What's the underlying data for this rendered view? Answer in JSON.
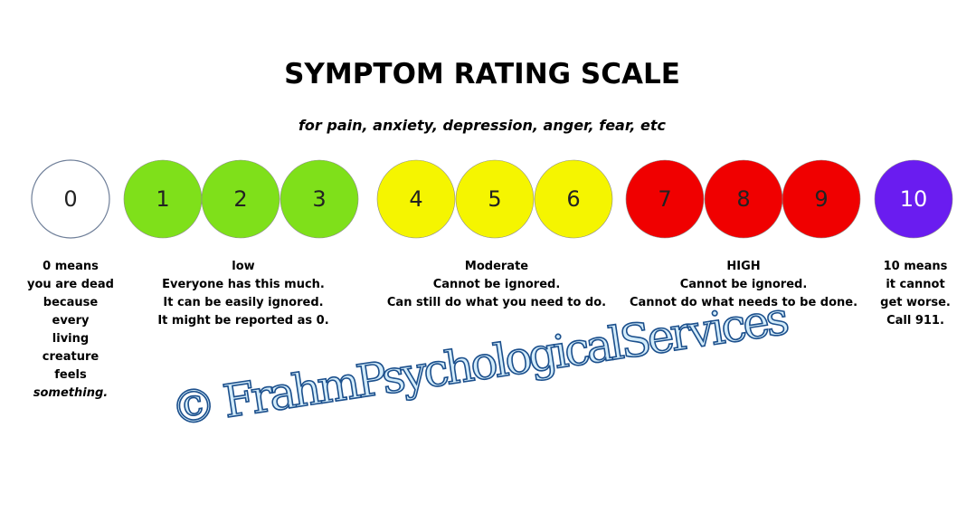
{
  "header": {
    "title": "SYMPTOM RATING SCALE",
    "subtitle": "for pain, anxiety, depression, anger, fear, etc"
  },
  "circles": [
    {
      "label": "0",
      "color": "#ffffff"
    },
    {
      "label": "1",
      "color": "#7fe01a"
    },
    {
      "label": "2",
      "color": "#7fe01a"
    },
    {
      "label": "3",
      "color": "#7fe01a"
    },
    {
      "label": "4",
      "color": "#f5f500"
    },
    {
      "label": "5",
      "color": "#f5f500"
    },
    {
      "label": "6",
      "color": "#f5f500"
    },
    {
      "label": "7",
      "color": "#f00000"
    },
    {
      "label": "8",
      "color": "#f00000"
    },
    {
      "label": "9",
      "color": "#f00000"
    },
    {
      "label": "10",
      "color": "#6a1cf0"
    }
  ],
  "descriptions": [
    {
      "lines": [
        "0 means",
        "you are dead",
        "because",
        "every",
        "living",
        "creature",
        "feels",
        "something."
      ]
    },
    {
      "lines": [
        "low",
        "Everyone has this much.",
        "It can be easily ignored.",
        "It might be reported as 0."
      ]
    },
    {
      "lines": [
        "Moderate",
        "Cannot be ignored.",
        "Can still do what you need to do."
      ]
    },
    {
      "lines": [
        "HIGH",
        "Cannot be ignored.",
        "Cannot do what needs to be done."
      ]
    },
    {
      "lines": [
        "10 means",
        "it cannot",
        "get worse.",
        "Call 911."
      ]
    }
  ],
  "watermark": "© FrahmPsychologicalServices"
}
